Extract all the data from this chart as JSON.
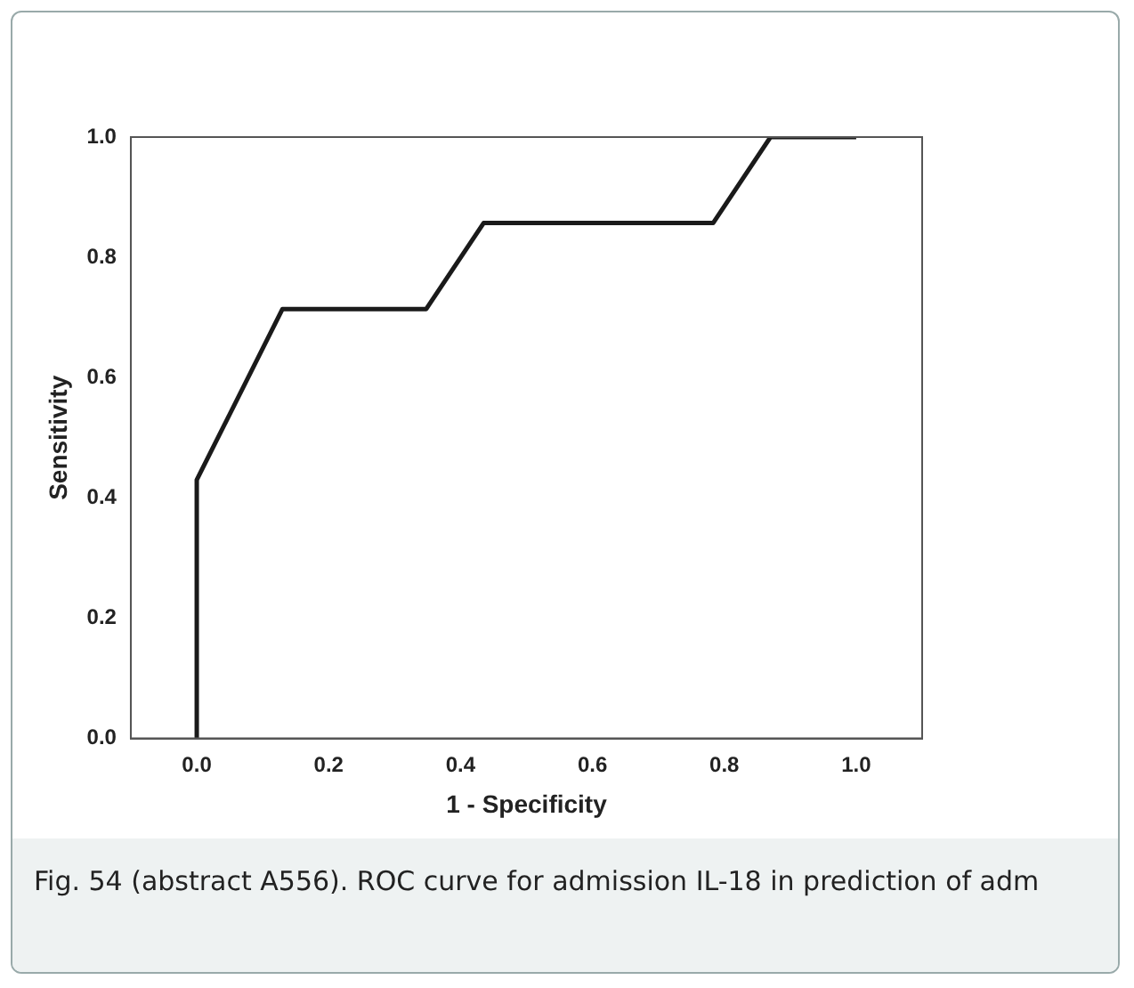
{
  "chart_data": {
    "type": "line",
    "xlabel": "1 - Specificity",
    "ylabel": "Sensitivity",
    "x": [
      0,
      0,
      0.13,
      0.348,
      0.435,
      0.783,
      0.87,
      1
    ],
    "values": [
      0,
      0.43,
      0.714,
      0.714,
      0.857,
      0.857,
      1,
      1
    ],
    "color": "#1a1a1a",
    "marker": "none",
    "line_style": "solid",
    "grid": false,
    "legend": false,
    "xlim": [
      -0.1,
      1.1
    ],
    "ylim": [
      0,
      1
    ],
    "xticks": [
      {
        "value": 0,
        "label": "0.0"
      },
      {
        "value": 0.2,
        "label": "0.2"
      },
      {
        "value": 0.4,
        "label": "0.4"
      },
      {
        "value": 0.6,
        "label": "0.6"
      },
      {
        "value": 0.8,
        "label": "0.8"
      },
      {
        "value": 1,
        "label": "1.0"
      }
    ],
    "yticks": [
      {
        "value": 0,
        "label": "0.0"
      },
      {
        "value": 0.2,
        "label": "0.2"
      },
      {
        "value": 0.4,
        "label": "0.4"
      },
      {
        "value": 0.6,
        "label": "0.6"
      },
      {
        "value": 0.8,
        "label": "0.8"
      },
      {
        "value": 1,
        "label": "1.0"
      }
    ],
    "annotations": [
      "Fig. 54 (abstract A556). ROC curve for admission IL-18 in prediction of adm"
    ]
  }
}
